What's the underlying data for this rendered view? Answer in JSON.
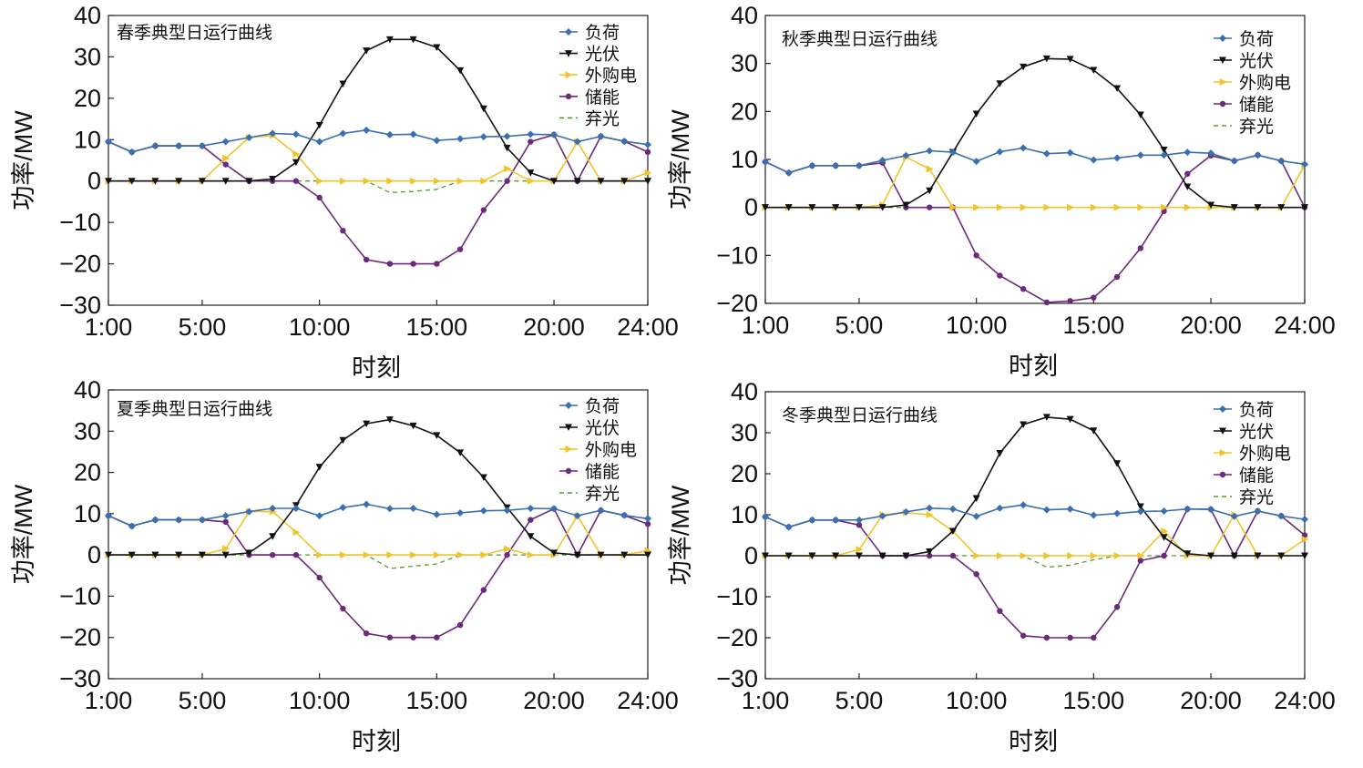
{
  "figure": {
    "series_meta": [
      {
        "key": "load",
        "name": "负荷",
        "color": "#3a6fb0",
        "marker": "diamond",
        "dashed": false
      },
      {
        "key": "pv",
        "name": "光伏",
        "color": "#111111",
        "marker": "triangle-down",
        "dashed": false
      },
      {
        "key": "grid",
        "name": "外购电",
        "color": "#f2c42c",
        "marker": "triangle-right",
        "dashed": false
      },
      {
        "key": "storage",
        "name": "储能",
        "color": "#6b2a7a",
        "marker": "circle",
        "dashed": false
      },
      {
        "key": "curtail",
        "name": "弃光",
        "color": "#5a9a28",
        "marker": "none",
        "dashed": true
      }
    ]
  },
  "chart_data": [
    {
      "type": "line",
      "title": "春季典型日运行曲线",
      "xlabel": "时刻",
      "ylabel": "功率/MW",
      "x": [
        1,
        2,
        3,
        4,
        5,
        6,
        7,
        8,
        9,
        10,
        11,
        12,
        13,
        14,
        15,
        16,
        17,
        18,
        19,
        20,
        21,
        22,
        23,
        24
      ],
      "xticks": [
        1,
        5,
        10,
        15,
        20,
        24
      ],
      "xtick_labels": [
        "1:00",
        "5:00",
        "10:00",
        "15:00",
        "20:00",
        "24:00"
      ],
      "ylim": [
        -30,
        40
      ],
      "yticks": [
        -30,
        -20,
        -10,
        0,
        10,
        20,
        30,
        40
      ],
      "ytick_labels": [
        "−30",
        "−20",
        "−10",
        "0",
        "10",
        "20",
        "30",
        "40"
      ],
      "legend_position": "top-right",
      "series": [
        {
          "name": "负荷",
          "values": [
            9.5,
            7.0,
            8.5,
            8.5,
            8.5,
            9.5,
            10.5,
            11.5,
            11.3,
            9.5,
            11.5,
            12.3,
            11.2,
            11.3,
            9.8,
            10.2,
            10.7,
            10.8,
            11.3,
            11.2,
            9.5,
            10.8,
            9.6,
            8.8
          ]
        },
        {
          "name": "光伏",
          "values": [
            0,
            0,
            0,
            0,
            0,
            0,
            0,
            0.5,
            4.5,
            13.5,
            23.5,
            31.5,
            34.2,
            34.2,
            32.3,
            26.7,
            17.5,
            8.0,
            2.0,
            0,
            0,
            0,
            0,
            0
          ]
        },
        {
          "name": "外购电",
          "values": [
            0,
            0,
            0,
            0,
            0,
            5.5,
            10.5,
            11,
            6.5,
            0,
            0,
            0,
            0,
            0,
            0,
            0,
            0,
            3.0,
            0,
            0,
            9.5,
            0,
            0,
            2.0
          ]
        },
        {
          "name": "储能",
          "values": [
            9.5,
            7.0,
            8.5,
            8.5,
            8.5,
            4.0,
            0,
            0,
            0,
            -4.0,
            -12.0,
            -19.0,
            -20.0,
            -20.0,
            -20.0,
            -16.5,
            -7.0,
            0,
            9.5,
            11.2,
            0,
            10.8,
            9.6,
            7.0
          ]
        },
        {
          "name": "弃光",
          "values": [
            0,
            0,
            0,
            0,
            0,
            0,
            0,
            0,
            0,
            0,
            0,
            0,
            -2.8,
            -2.5,
            -2.0,
            0,
            0,
            0,
            0,
            0,
            0,
            0,
            0,
            0
          ]
        }
      ]
    },
    {
      "type": "line",
      "title": "秋季典型日运行曲线",
      "xlabel": "时刻",
      "ylabel": "功率/MW",
      "x": [
        1,
        2,
        3,
        4,
        5,
        6,
        7,
        8,
        9,
        10,
        11,
        12,
        13,
        14,
        15,
        16,
        17,
        18,
        19,
        20,
        21,
        22,
        23,
        24
      ],
      "xticks": [
        1,
        5,
        10,
        15,
        20,
        24
      ],
      "xtick_labels": [
        "1:00",
        "5:00",
        "10:00",
        "15:00",
        "20:00",
        "24:00"
      ],
      "ylim": [
        -20,
        40
      ],
      "yticks": [
        -20,
        -10,
        0,
        10,
        20,
        30,
        40
      ],
      "ytick_labels": [
        "−20",
        "−10",
        "0",
        "10",
        "20",
        "30",
        "40"
      ],
      "legend_position": "top-right",
      "series": [
        {
          "name": "负荷",
          "values": [
            9.5,
            7.2,
            8.7,
            8.7,
            8.7,
            9.8,
            10.8,
            11.8,
            11.5,
            9.6,
            11.6,
            12.4,
            11.2,
            11.4,
            9.9,
            10.3,
            10.9,
            10.9,
            11.5,
            11.3,
            9.7,
            10.9,
            9.7,
            9.0
          ]
        },
        {
          "name": "光伏",
          "values": [
            0,
            0,
            0,
            0,
            0,
            0,
            0.5,
            3.5,
            11.5,
            19.5,
            25.8,
            29.3,
            31.0,
            30.9,
            28.6,
            24.8,
            19.3,
            12.0,
            4.3,
            0.5,
            0,
            0,
            0,
            0
          ]
        },
        {
          "name": "外购电",
          "values": [
            0,
            0,
            0,
            0,
            0,
            0.5,
            10.5,
            8.0,
            0,
            0,
            0,
            0,
            0,
            0,
            0,
            0,
            0,
            0,
            0,
            0,
            0,
            0,
            0,
            8.8
          ]
        },
        {
          "name": "储能",
          "values": [
            9.5,
            7.2,
            8.7,
            8.7,
            8.7,
            9.3,
            0,
            0,
            0,
            -10.0,
            -14.2,
            -17.0,
            -19.8,
            -19.5,
            -18.8,
            -14.5,
            -8.5,
            -0.8,
            7.0,
            10.8,
            9.7,
            10.9,
            9.7,
            0
          ]
        },
        {
          "name": "弃光",
          "values": [
            0,
            0,
            0,
            0,
            0,
            0,
            0,
            0,
            0,
            0,
            0,
            0,
            0,
            0,
            0,
            0,
            0,
            0,
            0,
            0,
            0,
            0,
            0,
            0
          ]
        }
      ]
    },
    {
      "type": "line",
      "title": "夏季典型日运行曲线",
      "xlabel": "时刻",
      "ylabel": "功率/MW",
      "x": [
        1,
        2,
        3,
        4,
        5,
        6,
        7,
        8,
        9,
        10,
        11,
        12,
        13,
        14,
        15,
        16,
        17,
        18,
        19,
        20,
        21,
        22,
        23,
        24
      ],
      "xticks": [
        1,
        5,
        10,
        15,
        20,
        24
      ],
      "xtick_labels": [
        "1:00",
        "5:00",
        "10:00",
        "15:00",
        "20:00",
        "24:00"
      ],
      "ylim": [
        -30,
        40
      ],
      "yticks": [
        -30,
        -20,
        -10,
        0,
        10,
        20,
        30,
        40
      ],
      "ytick_labels": [
        "−30",
        "−20",
        "−10",
        "0",
        "10",
        "20",
        "30",
        "40"
      ],
      "legend_position": "top-right",
      "series": [
        {
          "name": "负荷",
          "values": [
            9.5,
            7.0,
            8.5,
            8.5,
            8.5,
            9.5,
            10.5,
            11.3,
            11.3,
            9.5,
            11.5,
            12.3,
            11.2,
            11.3,
            9.8,
            10.2,
            10.7,
            10.8,
            11.3,
            11.2,
            9.5,
            10.8,
            9.6,
            8.8
          ]
        },
        {
          "name": "光伏",
          "values": [
            0,
            0,
            0,
            0,
            0,
            0,
            0.5,
            4.5,
            12.0,
            21.3,
            27.8,
            31.8,
            32.8,
            31.3,
            29.0,
            24.8,
            18.8,
            11.5,
            4.5,
            0.5,
            0,
            0,
            0,
            0
          ]
        },
        {
          "name": "外购电",
          "values": [
            0,
            0,
            0,
            0,
            0,
            1.5,
            10.5,
            10.5,
            5.5,
            0,
            0,
            0,
            0,
            0,
            0,
            0,
            0,
            1.5,
            0,
            0,
            9.5,
            0,
            0,
            1.0
          ]
        },
        {
          "name": "储能",
          "values": [
            9.5,
            7.0,
            8.5,
            8.5,
            8.5,
            8.0,
            0,
            0,
            0,
            -5.5,
            -13.0,
            -19.0,
            -20.0,
            -20.0,
            -20.0,
            -17.0,
            -8.5,
            0,
            8.5,
            11.2,
            0,
            10.8,
            9.6,
            7.5
          ]
        },
        {
          "name": "弃光",
          "values": [
            0,
            0,
            0,
            0,
            0,
            0,
            0,
            0,
            0,
            0,
            0,
            0,
            -3.3,
            -2.7,
            -2.2,
            0,
            0,
            0,
            0,
            0,
            0,
            0,
            0,
            0
          ]
        }
      ]
    },
    {
      "type": "line",
      "title": "冬季典型日运行曲线",
      "xlabel": "时刻",
      "ylabel": "功率/MW",
      "x": [
        1,
        2,
        3,
        4,
        5,
        6,
        7,
        8,
        9,
        10,
        11,
        12,
        13,
        14,
        15,
        16,
        17,
        18,
        19,
        20,
        21,
        22,
        23,
        24
      ],
      "xticks": [
        1,
        5,
        10,
        15,
        20,
        24
      ],
      "xtick_labels": [
        "1:00",
        "5:00",
        "10:00",
        "15:00",
        "20:00",
        "24:00"
      ],
      "ylim": [
        -30,
        40
      ],
      "yticks": [
        -30,
        -20,
        -10,
        0,
        10,
        20,
        30,
        40
      ],
      "ytick_labels": [
        "−30",
        "−20",
        "−10",
        "0",
        "10",
        "20",
        "30",
        "40"
      ],
      "legend_position": "top-right",
      "series": [
        {
          "name": "负荷",
          "values": [
            9.5,
            7.0,
            8.7,
            8.7,
            8.7,
            9.7,
            10.7,
            11.6,
            11.4,
            9.6,
            11.6,
            12.4,
            11.2,
            11.4,
            9.9,
            10.3,
            10.8,
            10.9,
            11.4,
            11.3,
            9.6,
            10.9,
            9.7,
            8.9
          ]
        },
        {
          "name": "光伏",
          "values": [
            0,
            0,
            0,
            0,
            0,
            0,
            0,
            1.0,
            6.0,
            14.0,
            25.0,
            32.0,
            33.8,
            33.3,
            30.5,
            22.5,
            12.0,
            4.5,
            0.5,
            0,
            0,
            0,
            0,
            0
          ]
        },
        {
          "name": "外购电",
          "values": [
            0,
            0,
            0,
            0,
            1.5,
            10.0,
            10.5,
            10.0,
            6.0,
            0,
            0,
            0,
            0,
            0,
            0,
            0,
            0,
            6.0,
            0,
            0,
            10.0,
            0,
            0,
            4.0
          ]
        },
        {
          "name": "储能",
          "values": [
            9.5,
            7.0,
            8.7,
            8.7,
            7.5,
            0,
            0,
            0,
            0,
            -4.5,
            -13.5,
            -19.5,
            -20.0,
            -20.0,
            -20.0,
            -12.5,
            -1.2,
            0,
            11.4,
            11.3,
            0,
            10.9,
            9.7,
            5.0
          ]
        },
        {
          "name": "弃光",
          "values": [
            0,
            0,
            0,
            0,
            0,
            0,
            0,
            0,
            0,
            0,
            0,
            0,
            -2.8,
            -2.3,
            -1.0,
            0,
            0,
            0,
            0,
            0,
            0,
            0,
            0,
            0
          ]
        }
      ]
    }
  ]
}
